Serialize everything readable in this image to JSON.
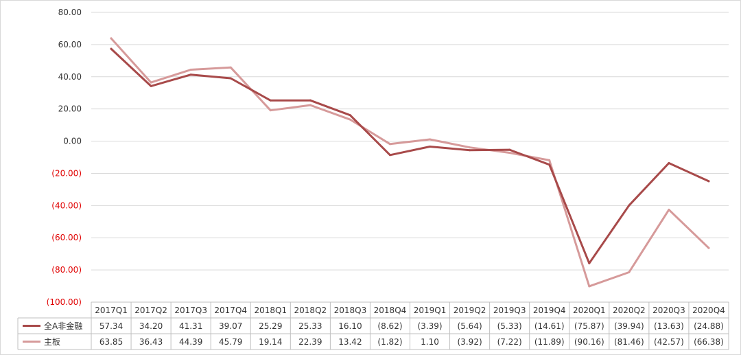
{
  "chart_data": {
    "type": "line",
    "x": [
      "2017Q1",
      "2017Q2",
      "2017Q3",
      "2017Q4",
      "2018Q1",
      "2018Q2",
      "2018Q3",
      "2018Q4",
      "2019Q1",
      "2019Q2",
      "2019Q3",
      "2019Q4",
      "2020Q1",
      "2020Q2",
      "2020Q3",
      "2020Q4"
    ],
    "series": [
      {
        "name": "全A非金融",
        "color": "#a84a4a",
        "values": [
          57.34,
          34.2,
          41.31,
          39.07,
          25.29,
          25.33,
          16.1,
          -8.62,
          -3.39,
          -5.64,
          -5.33,
          -14.61,
          -75.87,
          -39.94,
          -13.63,
          -24.88
        ],
        "labels": [
          "57.34",
          "34.20",
          "41.31",
          "39.07",
          "25.29",
          "25.33",
          "16.10",
          "(8.62)",
          "(3.39)",
          "(5.64)",
          "(5.33)",
          "(14.61)",
          "(75.87)",
          "(39.94)",
          "(13.63)",
          "(24.88)"
        ]
      },
      {
        "name": "主板",
        "color": "#d69a9a",
        "values": [
          63.85,
          36.43,
          44.39,
          45.79,
          19.14,
          22.39,
          13.42,
          -1.82,
          1.1,
          -3.92,
          -7.22,
          -11.89,
          -90.16,
          -81.46,
          -42.57,
          -66.38
        ],
        "labels": [
          "63.85",
          "36.43",
          "44.39",
          "45.79",
          "19.14",
          "22.39",
          "13.42",
          "(1.82)",
          "1.10",
          "(3.92)",
          "(7.22)",
          "(11.89)",
          "(90.16)",
          "(81.46)",
          "(42.57)",
          "(66.38)"
        ]
      }
    ],
    "ylim": [
      -100,
      80
    ],
    "yticks": [
      80,
      60,
      40,
      20,
      0,
      -20,
      -40,
      -60,
      -80,
      -100
    ],
    "ytick_labels": [
      "80.00",
      "60.00",
      "40.00",
      "20.00",
      "0.00",
      "(20.00)",
      "(40.00)",
      "(60.00)",
      "(80.00)",
      "(100.00)"
    ],
    "negative_tick_color": "#e00000",
    "positive_tick_color": "#333333",
    "grid": true,
    "legend": "data-table"
  }
}
